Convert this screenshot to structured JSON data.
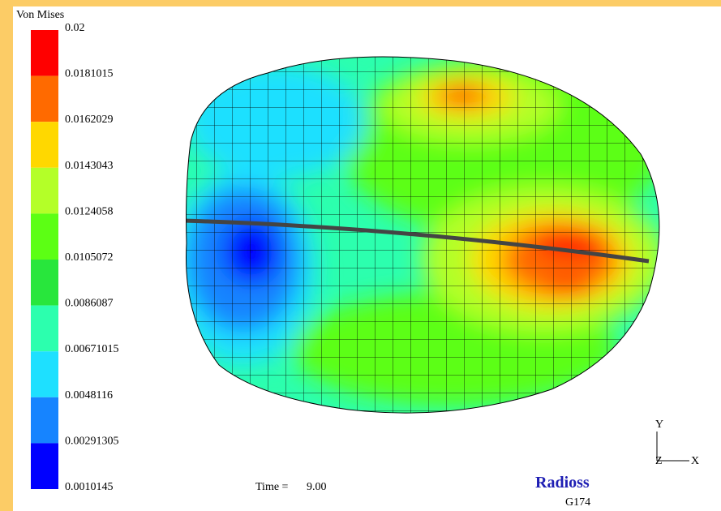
{
  "legend": {
    "title": "Von Mises",
    "labels": [
      "0.02",
      "0.0181015",
      "0.0162029",
      "0.0143043",
      "0.0124058",
      "0.0105072",
      "0.0086087",
      "0.00671015",
      "0.0048116",
      "0.00291305",
      "0.0010145"
    ],
    "colors": [
      "#ff0000",
      "#ff6a00",
      "#ffd800",
      "#b4ff28",
      "#5cff14",
      "#28e63c",
      "#2cffae",
      "#1ee0ff",
      "#1684ff",
      "#0000ff"
    ]
  },
  "time": {
    "label": "Time =",
    "value": "9.00"
  },
  "brand": {
    "name": "Radioss",
    "id": "G174"
  },
  "axes": {
    "y": "Y",
    "z": "Z",
    "x": "X"
  }
}
